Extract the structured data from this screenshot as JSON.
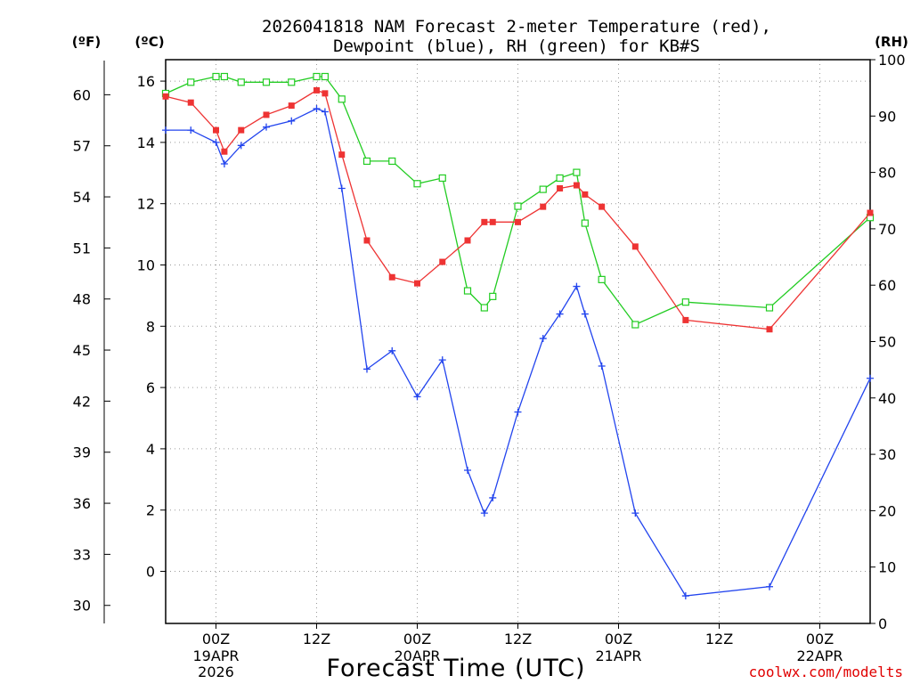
{
  "title": {
    "line1": "2026041818 NAM Forecast 2-meter Temperature (red),",
    "line2": "Dewpoint (blue), RH (green) for KB#S"
  },
  "axes": {
    "left_f_unit": "(ºF)",
    "left_c_unit": "(ºC)",
    "right_unit": "(RH)",
    "xlabel": "Forecast Time (UTC)"
  },
  "credit": "coolwx.com/modelts",
  "x_ticks": [
    {
      "hour": 6,
      "line1": "00Z",
      "line2": "19APR",
      "line3": "2026"
    },
    {
      "hour": 18,
      "line1": "12Z",
      "line2": "",
      "line3": ""
    },
    {
      "hour": 30,
      "line1": "00Z",
      "line2": "20APR",
      "line3": ""
    },
    {
      "hour": 42,
      "line1": "12Z",
      "line2": "",
      "line3": ""
    },
    {
      "hour": 54,
      "line1": "00Z",
      "line2": "21APR",
      "line3": ""
    },
    {
      "hour": 66,
      "line1": "12Z",
      "line2": "",
      "line3": ""
    },
    {
      "hour": 78,
      "line1": "00Z",
      "line2": "22APR",
      "line3": ""
    }
  ],
  "chart_data": {
    "type": "line",
    "x_label": "Forecast Time (UTC)",
    "x_units": "forecast hour from 2026041818 (18Z 18 Apr 2026)",
    "xlim": [
      0,
      84
    ],
    "y_left_c": {
      "range": [
        -1.7,
        16.7
      ],
      "ticks": [
        0,
        2,
        4,
        6,
        8,
        10,
        12,
        14,
        16
      ]
    },
    "y_left_f": {
      "ticks": [
        30,
        33,
        36,
        39,
        42,
        45,
        48,
        51,
        54,
        57,
        60
      ]
    },
    "y_right_rh": {
      "range": [
        0,
        100
      ],
      "ticks": [
        0,
        10,
        20,
        30,
        40,
        50,
        60,
        70,
        80,
        90,
        100
      ]
    },
    "grid": true,
    "x": [
      0,
      3,
      6,
      7,
      9,
      12,
      15,
      18,
      19,
      21,
      24,
      27,
      30,
      33,
      36,
      38,
      39,
      42,
      45,
      47,
      49,
      50,
      52,
      56,
      62,
      72,
      84
    ],
    "series": [
      {
        "name": "Temperature",
        "color": "#ee3333",
        "marker": "filled-square",
        "axis": "left_c",
        "values": [
          15.5,
          15.3,
          14.4,
          13.7,
          14.4,
          14.9,
          15.2,
          15.7,
          15.6,
          13.6,
          10.8,
          9.6,
          9.4,
          10.1,
          10.8,
          11.4,
          11.4,
          11.4,
          11.9,
          12.5,
          12.6,
          12.3,
          11.9,
          10.6,
          8.2,
          7.9,
          11.7
        ]
      },
      {
        "name": "Dewpoint",
        "color": "#2244ee",
        "marker": "plus",
        "axis": "left_c",
        "values": [
          14.4,
          14.4,
          14.0,
          13.3,
          13.9,
          14.5,
          14.7,
          15.1,
          15.0,
          12.5,
          6.6,
          7.2,
          5.7,
          6.9,
          3.3,
          1.9,
          2.4,
          5.2,
          7.6,
          8.4,
          9.3,
          8.4,
          6.7,
          1.9,
          -0.8,
          -0.5,
          6.3
        ]
      },
      {
        "name": "RH",
        "color": "#22cc22",
        "marker": "open-square",
        "axis": "right_rh",
        "values": [
          94,
          96,
          97,
          97,
          96,
          96,
          96,
          97,
          97,
          93,
          82,
          82,
          78,
          79,
          59,
          56,
          58,
          74,
          77,
          79,
          80,
          71,
          61,
          53,
          57,
          56,
          72
        ]
      }
    ]
  }
}
